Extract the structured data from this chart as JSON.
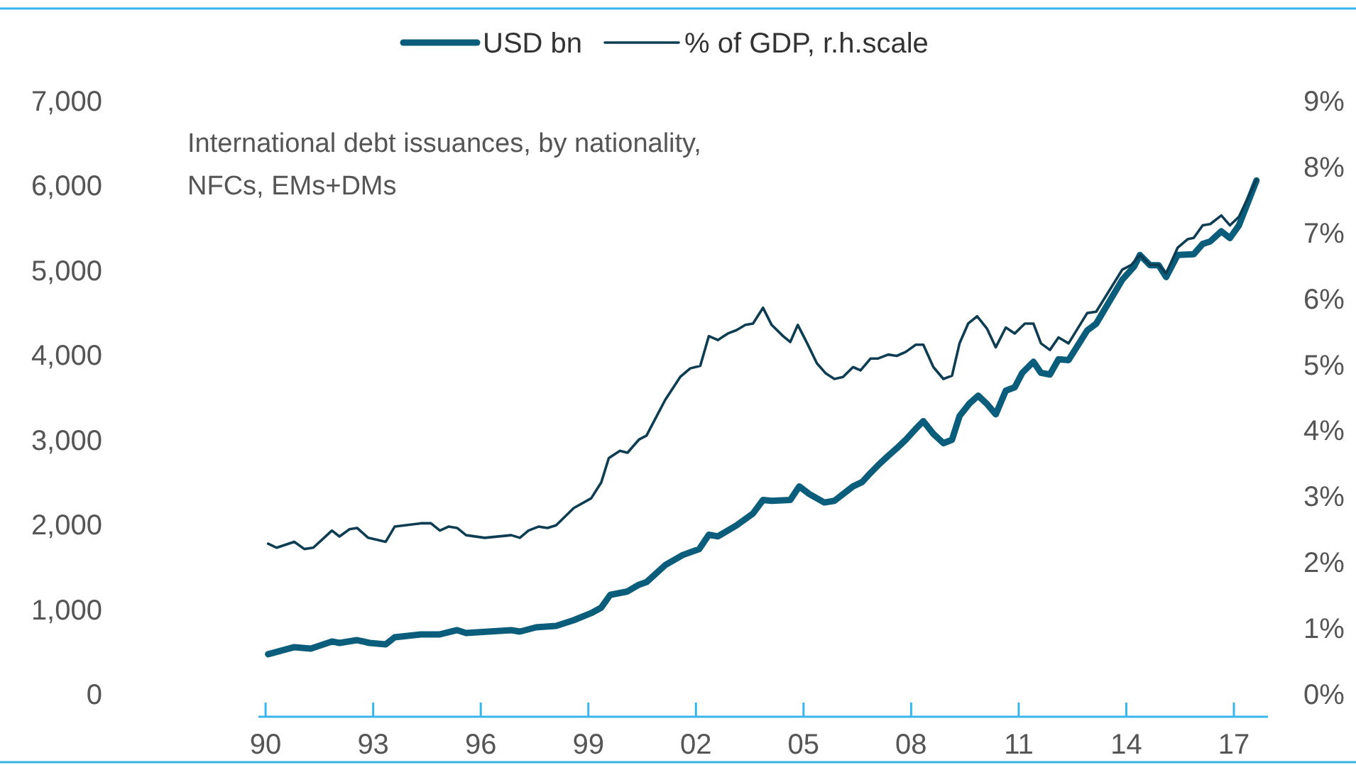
{
  "chart_data": {
    "type": "line",
    "annotations": [
      "International debt issuances, by nationality, NFCs, EMs+DMs"
    ],
    "xlim": [
      1989.8,
      2017.95
    ],
    "xticks": [
      {
        "value": 1990,
        "label": "90"
      },
      {
        "value": 1993,
        "label": "93"
      },
      {
        "value": 1996,
        "label": "96"
      },
      {
        "value": 1999,
        "label": "99"
      },
      {
        "value": 2002,
        "label": "02"
      },
      {
        "value": 2005,
        "label": "05"
      },
      {
        "value": 2008,
        "label": "08"
      },
      {
        "value": 2011,
        "label": "11"
      },
      {
        "value": 2014,
        "label": "14"
      },
      {
        "value": 2017,
        "label": "17"
      }
    ],
    "ylim": [
      0,
      7000
    ],
    "yticks": [
      {
        "value": 0,
        "label": "0"
      },
      {
        "value": 1000,
        "label": "1,000"
      },
      {
        "value": 2000,
        "label": "2,000"
      },
      {
        "value": 3000,
        "label": "3,000"
      },
      {
        "value": 4000,
        "label": "4,000"
      },
      {
        "value": 5000,
        "label": "5,000"
      },
      {
        "value": 6000,
        "label": "6,000"
      },
      {
        "value": 7000,
        "label": "7,000"
      }
    ],
    "y2lim": [
      0,
      9
    ],
    "y2ticks": [
      {
        "value": 0,
        "label": "0%"
      },
      {
        "value": 1,
        "label": "1%"
      },
      {
        "value": 2,
        "label": "2%"
      },
      {
        "value": 3,
        "label": "3%"
      },
      {
        "value": 4,
        "label": "4%"
      },
      {
        "value": 5,
        "label": "5%"
      },
      {
        "value": 6,
        "label": "6%"
      },
      {
        "value": 7,
        "label": "7%"
      },
      {
        "value": 8,
        "label": "8%"
      },
      {
        "value": 9,
        "label": "9%"
      }
    ],
    "grid": false,
    "legend": "top",
    "marker": "none",
    "line_style": "solid",
    "series": [
      {
        "name": "USD bn",
        "color": "#0b5d7c",
        "x": [
          1990.07,
          1990.8,
          1991.26,
          1991.85,
          1992.06,
          1992.55,
          1992.9,
          1993.35,
          1993.6,
          1994.33,
          1994.86,
          1995.34,
          1995.59,
          1996.85,
          1997.09,
          1997.54,
          1998.1,
          1998.59,
          1999.08,
          1999.36,
          1999.61,
          2000.09,
          2000.41,
          2000.62,
          2001.14,
          2001.63,
          2002.09,
          2002.36,
          2002.61,
          2003.13,
          2003.59,
          2003.87,
          2004.11,
          2004.63,
          2004.88,
          2005.16,
          2005.58,
          2005.86,
          2006.38,
          2006.63,
          2006.87,
          2007.08,
          2007.36,
          2007.6,
          2007.85,
          2008.13,
          2008.34,
          2008.62,
          2008.9,
          2009.14,
          2009.35,
          2009.63,
          2009.87,
          2010.12,
          2010.36,
          2010.64,
          2010.89,
          2011.1,
          2011.41,
          2011.62,
          2011.87,
          2012.11,
          2012.39,
          2012.91,
          2013.16,
          2013.89,
          2014.21,
          2014.38,
          2014.66,
          2014.9,
          2015.11,
          2015.43,
          2015.88,
          2016.13,
          2016.34,
          2016.65,
          2016.89,
          2017.14,
          2017.63
        ],
        "values": [
          470,
          553,
          536,
          620,
          603,
          636,
          603,
          586,
          670,
          704,
          704,
          754,
          720,
          754,
          737,
          787,
          804,
          871,
          955,
          1020,
          1170,
          1210,
          1290,
          1320,
          1520,
          1640,
          1710,
          1880,
          1860,
          1990,
          2130,
          2290,
          2280,
          2290,
          2450,
          2360,
          2260,
          2280,
          2450,
          2500,
          2610,
          2700,
          2810,
          2900,
          3000,
          3130,
          3220,
          3070,
          2960,
          3000,
          3280,
          3430,
          3520,
          3420,
          3300,
          3580,
          3620,
          3790,
          3920,
          3790,
          3770,
          3950,
          3940,
          4290,
          4370,
          4890,
          5040,
          5180,
          5060,
          5060,
          4920,
          5180,
          5190,
          5310,
          5340,
          5460,
          5380,
          5530,
          6060
        ]
      },
      {
        "name": "% of GDP, r.h.scale",
        "color": "#0d3d52",
        "axis": "y2",
        "x": [
          1990.07,
          1990.31,
          1990.8,
          1991.08,
          1991.33,
          1991.85,
          1992.06,
          1992.34,
          1992.55,
          1992.86,
          1993.35,
          1993.6,
          1994.33,
          1994.61,
          1994.86,
          1995.1,
          1995.34,
          1995.59,
          1996.11,
          1996.85,
          1997.09,
          1997.33,
          1997.61,
          1997.86,
          1998.1,
          1998.59,
          1999.08,
          1999.36,
          1999.57,
          1999.88,
          2000.09,
          2000.41,
          2000.62,
          2001.14,
          2001.56,
          2001.84,
          2002.12,
          2002.36,
          2002.61,
          2002.89,
          2003.13,
          2003.38,
          2003.59,
          2003.87,
          2004.11,
          2004.43,
          2004.63,
          2004.84,
          2005.12,
          2005.37,
          2005.61,
          2005.86,
          2006.1,
          2006.38,
          2006.59,
          2006.87,
          2007.08,
          2007.36,
          2007.6,
          2007.85,
          2008.13,
          2008.34,
          2008.62,
          2008.9,
          2009.14,
          2009.35,
          2009.59,
          2009.84,
          2010.12,
          2010.36,
          2010.64,
          2010.89,
          2011.17,
          2011.41,
          2011.62,
          2011.87,
          2012.11,
          2012.39,
          2012.91,
          2013.16,
          2013.89,
          2014.14,
          2014.38,
          2014.66,
          2014.9,
          2015.11,
          2015.43,
          2015.71,
          2015.88,
          2016.13,
          2016.34,
          2016.65,
          2016.89,
          2017.14,
          2017.63
        ],
        "values": [
          2.28,
          2.22,
          2.31,
          2.2,
          2.22,
          2.48,
          2.39,
          2.5,
          2.52,
          2.37,
          2.31,
          2.54,
          2.59,
          2.59,
          2.48,
          2.54,
          2.52,
          2.41,
          2.37,
          2.41,
          2.37,
          2.48,
          2.54,
          2.52,
          2.56,
          2.82,
          2.97,
          3.21,
          3.58,
          3.69,
          3.66,
          3.86,
          3.92,
          4.46,
          4.81,
          4.94,
          4.98,
          5.43,
          5.37,
          5.47,
          5.52,
          5.6,
          5.62,
          5.86,
          5.6,
          5.43,
          5.34,
          5.6,
          5.3,
          5.02,
          4.87,
          4.78,
          4.81,
          4.96,
          4.91,
          5.09,
          5.09,
          5.15,
          5.13,
          5.19,
          5.3,
          5.3,
          4.96,
          4.78,
          4.83,
          5.32,
          5.62,
          5.73,
          5.54,
          5.26,
          5.56,
          5.47,
          5.62,
          5.62,
          5.32,
          5.22,
          5.41,
          5.32,
          5.78,
          5.8,
          6.44,
          6.51,
          6.66,
          6.51,
          6.51,
          6.38,
          6.77,
          6.9,
          6.92,
          7.11,
          7.13,
          7.26,
          7.11,
          7.24,
          7.8
        ]
      }
    ]
  }
}
